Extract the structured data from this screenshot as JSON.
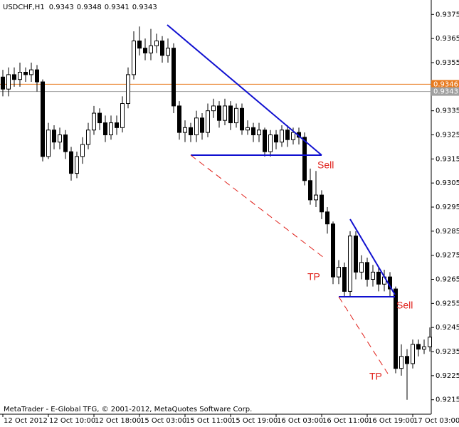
{
  "chart_data": {
    "type": "candlestick",
    "header": {
      "symbol": "USDCHF,H1",
      "ohlc": [
        0.9343,
        0.9348,
        0.9341,
        0.9343
      ]
    },
    "footer": "MetaTrader - E-Global TFG, © 2001-2012, MetaQuotes Software Corp.",
    "annotations": [
      "Sell",
      "TP",
      "Sell",
      "TP"
    ],
    "categories": [
      "12 Oct 2012",
      null,
      null,
      null,
      null,
      null,
      null,
      null,
      "12 Oct 10:00",
      null,
      null,
      null,
      null,
      null,
      null,
      null,
      "12 Oct 18:00",
      null,
      null,
      null,
      null,
      null,
      null,
      null,
      "15 Oct 03:00",
      null,
      null,
      null,
      null,
      null,
      null,
      null,
      "15 Oct 11:00",
      null,
      null,
      null,
      null,
      null,
      null,
      null,
      "15 Oct 19:00",
      null,
      null,
      null,
      null,
      null,
      null,
      null,
      "16 Oct 03:00",
      null,
      null,
      null,
      null,
      null,
      null,
      null,
      "16 Oct 11:00",
      null,
      null,
      null,
      null,
      null,
      null,
      null,
      "16 Oct 19:00",
      null,
      null,
      null,
      null,
      null,
      null,
      null,
      "17 Oct 03:00",
      null,
      null,
      null
    ],
    "open": [
      0.9349,
      0.9344,
      0.935,
      0.9348,
      0.9351,
      0.935,
      0.9352,
      0.9347,
      0.9316,
      0.9327,
      0.9322,
      0.9325,
      0.9318,
      0.9309,
      0.9316,
      0.9321,
      0.9327,
      0.9334,
      0.933,
      0.9325,
      0.933,
      0.9328,
      0.9338,
      0.935,
      0.9364,
      0.9361,
      0.9359,
      0.9362,
      0.9364,
      0.9358,
      0.9361,
      0.9337,
      0.9326,
      0.9328,
      0.9325,
      0.9332,
      0.9326,
      0.9335,
      0.9337,
      0.9331,
      0.9337,
      0.933,
      0.9336,
      0.9327,
      0.9328,
      0.9325,
      0.9327,
      0.9318,
      0.9325,
      0.9322,
      0.9327,
      0.9323,
      0.9326,
      0.9324,
      0.9306,
      0.9298,
      0.93,
      0.9293,
      0.9288,
      0.9266,
      0.927,
      0.926,
      0.9283,
      0.9268,
      0.9272,
      0.9265,
      0.9268,
      0.9263,
      0.9266,
      0.9261,
      0.9228,
      0.9233,
      0.923,
      0.9238,
      0.9236,
      0.9237
    ],
    "high": [
      0.9352,
      0.9353,
      0.9353,
      0.9355,
      0.9353,
      0.9355,
      0.9354,
      0.9348,
      0.933,
      0.9329,
      0.9328,
      0.9327,
      0.932,
      0.9318,
      0.9324,
      0.933,
      0.9337,
      0.9336,
      0.9333,
      0.9333,
      0.9333,
      0.9341,
      0.9353,
      0.9368,
      0.937,
      0.9365,
      0.9369,
      0.9367,
      0.9366,
      0.9365,
      0.9363,
      0.9339,
      0.9331,
      0.933,
      0.9335,
      0.9334,
      0.9338,
      0.934,
      0.9339,
      0.934,
      0.9339,
      0.9338,
      0.9338,
      0.9331,
      0.933,
      0.933,
      0.9328,
      0.9327,
      0.9327,
      0.9329,
      0.9329,
      0.9328,
      0.9328,
      0.9326,
      0.9311,
      0.931,
      0.9302,
      0.9295,
      0.9289,
      0.9273,
      0.9272,
      0.9285,
      0.9285,
      0.9275,
      0.9274,
      0.9271,
      0.927,
      0.9269,
      0.9268,
      0.9262,
      0.9238,
      0.9236,
      0.924,
      0.924,
      0.924,
      0.9245
    ],
    "low": [
      0.9341,
      0.9341,
      0.9345,
      0.9345,
      0.9347,
      0.9347,
      0.9343,
      0.9314,
      0.9315,
      0.9319,
      0.9319,
      0.9315,
      0.9306,
      0.9307,
      0.9313,
      0.9319,
      0.9325,
      0.9327,
      0.9322,
      0.9323,
      0.9325,
      0.9326,
      0.9336,
      0.9348,
      0.9358,
      0.9356,
      0.9356,
      0.9359,
      0.9355,
      0.9355,
      0.9334,
      0.9323,
      0.9322,
      0.9322,
      0.9322,
      0.9323,
      0.9324,
      0.9332,
      0.9328,
      0.9329,
      0.9327,
      0.9328,
      0.9325,
      0.9325,
      0.9322,
      0.9322,
      0.9316,
      0.9316,
      0.9319,
      0.932,
      0.932,
      0.9321,
      0.9321,
      0.9304,
      0.9296,
      0.9295,
      0.929,
      0.9284,
      0.9263,
      0.9263,
      0.9258,
      0.9258,
      0.9265,
      0.9265,
      0.9262,
      0.9262,
      0.926,
      0.926,
      0.9258,
      0.9226,
      0.9225,
      0.9215,
      0.9228,
      0.9233,
      0.9234,
      0.9235
    ],
    "close": [
      0.9344,
      0.935,
      0.9348,
      0.9351,
      0.935,
      0.9352,
      0.9347,
      0.9316,
      0.9327,
      0.9322,
      0.9325,
      0.9318,
      0.9309,
      0.9316,
      0.9321,
      0.9327,
      0.9334,
      0.933,
      0.9325,
      0.933,
      0.9328,
      0.9338,
      0.935,
      0.9364,
      0.9361,
      0.9359,
      0.9362,
      0.9364,
      0.9358,
      0.9361,
      0.9337,
      0.9326,
      0.9328,
      0.9325,
      0.9332,
      0.9326,
      0.9335,
      0.9337,
      0.9331,
      0.9337,
      0.933,
      0.9336,
      0.9327,
      0.9328,
      0.9325,
      0.9327,
      0.9318,
      0.9325,
      0.9322,
      0.9327,
      0.9323,
      0.9326,
      0.9324,
      0.9306,
      0.9298,
      0.93,
      0.9293,
      0.9288,
      0.9266,
      0.927,
      0.926,
      0.9283,
      0.9268,
      0.9272,
      0.9265,
      0.9268,
      0.9263,
      0.9266,
      0.9261,
      0.9228,
      0.9233,
      0.923,
      0.9238,
      0.9236,
      0.9237,
      0.9241
    ],
    "ylim": [
      0.9209,
      0.9381
    ],
    "yticks": [
      0.9375,
      0.9365,
      0.9355,
      0.9345,
      0.9335,
      0.9325,
      0.9315,
      0.9305,
      0.9295,
      0.9285,
      0.9275,
      0.9265,
      0.9255,
      0.9245,
      0.9235,
      0.9225,
      0.9215
    ],
    "price_lines": [
      {
        "value": 0.9346,
        "color": "#e87a1e"
      },
      {
        "value": 0.9343,
        "color": "#a0a0a0"
      }
    ]
  }
}
